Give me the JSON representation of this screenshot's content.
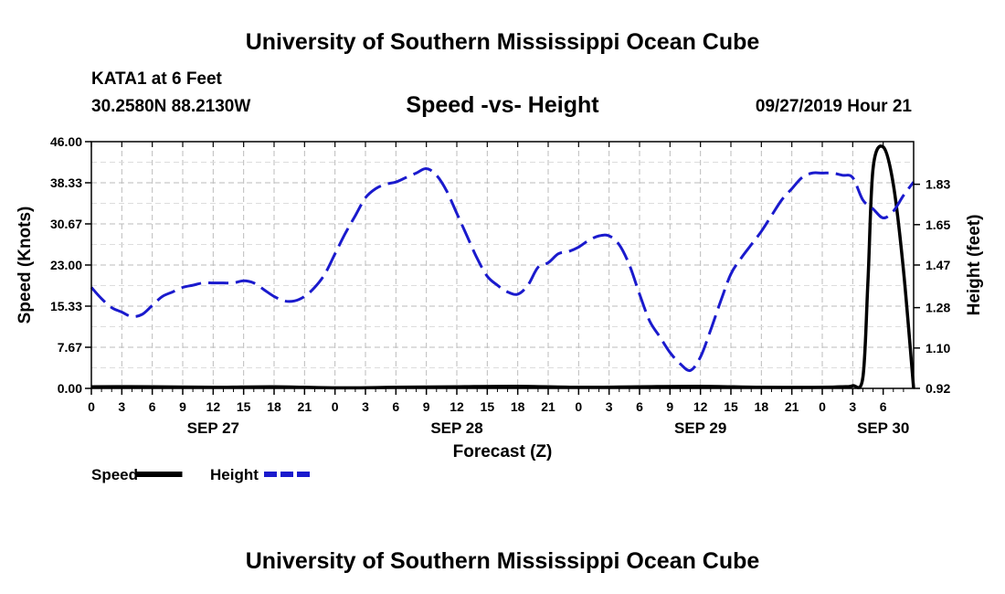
{
  "page": {
    "title_top": "University of Southern Mississippi Ocean Cube",
    "title_bottom": "University of Southern Mississippi Ocean Cube",
    "station": "KATA1 at 6 Feet",
    "coords": "30.2580N 88.2130W",
    "datetime": "09/27/2019 Hour 21"
  },
  "chart_data": {
    "type": "line",
    "title": "Speed -vs- Height",
    "xlabel": "Forecast (Z)",
    "ylabel_left": "Speed (Knots)",
    "ylabel_right": "Height (feet)",
    "x_hours_range": [
      0,
      81
    ],
    "x_tick_labels": [
      "0",
      "3",
      "6",
      "9",
      "12",
      "15",
      "18",
      "21",
      "0",
      "3",
      "6",
      "9",
      "12",
      "15",
      "18",
      "21",
      "0",
      "3",
      "6",
      "9",
      "12",
      "15",
      "18",
      "21",
      "0",
      "3",
      "6"
    ],
    "date_labels": [
      {
        "label": "SEP 27",
        "hour": 12
      },
      {
        "label": "SEP 28",
        "hour": 36
      },
      {
        "label": "SEP 29",
        "hour": 60
      },
      {
        "label": "SEP 30",
        "hour": 78
      }
    ],
    "y_left": {
      "range": [
        0,
        46
      ],
      "ticks": [
        "0.00",
        "7.67",
        "15.33",
        "23.00",
        "30.67",
        "38.33",
        "46.00"
      ]
    },
    "y_right": {
      "range": [
        0.92,
        2.02
      ],
      "ticks": [
        "0.92",
        "1.10",
        "1.28",
        "1.47",
        "1.65",
        "1.83"
      ]
    },
    "grid": true,
    "legend_placement": "bottom-left",
    "series": [
      {
        "name": "Speed",
        "axis": "left",
        "color": "#000000",
        "style": "solid",
        "x": [
          0,
          6,
          12,
          18,
          24,
          30,
          36,
          42,
          48,
          54,
          60,
          66,
          72,
          74,
          75,
          76,
          76.5,
          77,
          78,
          79,
          80,
          81
        ],
        "y": [
          0.3,
          0.3,
          0.2,
          0.3,
          0.1,
          0.2,
          0.3,
          0.4,
          0.2,
          0.3,
          0.4,
          0.2,
          0.2,
          0.3,
          0.5,
          2.0,
          20.0,
          41.0,
          45.0,
          38.0,
          22.0,
          0.0
        ]
      },
      {
        "name": "Height",
        "axis": "right",
        "color": "#1a1acd",
        "style": "dashed",
        "x": [
          0,
          1,
          2,
          3,
          4,
          5,
          6,
          7,
          8,
          9,
          10,
          11,
          12,
          13,
          14,
          15,
          16,
          17,
          18,
          19,
          20,
          21,
          22,
          23,
          24,
          25,
          26,
          27,
          28,
          29,
          30,
          31,
          32,
          33,
          34,
          35,
          36,
          37,
          38,
          39,
          40,
          41,
          42,
          43,
          44,
          45,
          46,
          47,
          48,
          49,
          50,
          51,
          52,
          53,
          54,
          55,
          56,
          57,
          58,
          59,
          60,
          61,
          62,
          63,
          64,
          65,
          66,
          67,
          68,
          69,
          70,
          71,
          72,
          73,
          74,
          75,
          76,
          77,
          78,
          79,
          80,
          81
        ],
        "y": [
          1.37,
          1.32,
          1.28,
          1.26,
          1.24,
          1.25,
          1.29,
          1.33,
          1.35,
          1.37,
          1.38,
          1.39,
          1.39,
          1.39,
          1.39,
          1.4,
          1.39,
          1.36,
          1.33,
          1.31,
          1.31,
          1.33,
          1.37,
          1.43,
          1.52,
          1.61,
          1.69,
          1.77,
          1.81,
          1.83,
          1.84,
          1.86,
          1.88,
          1.9,
          1.87,
          1.8,
          1.7,
          1.6,
          1.5,
          1.42,
          1.38,
          1.35,
          1.34,
          1.38,
          1.46,
          1.48,
          1.52,
          1.53,
          1.55,
          1.58,
          1.6,
          1.6,
          1.56,
          1.47,
          1.34,
          1.22,
          1.15,
          1.08,
          1.03,
          1.0,
          1.06,
          1.18,
          1.31,
          1.43,
          1.5,
          1.56,
          1.62,
          1.69,
          1.76,
          1.81,
          1.86,
          1.88,
          1.88,
          1.88,
          1.87,
          1.86,
          1.76,
          1.72,
          1.68,
          1.71,
          1.78,
          1.84
        ]
      }
    ]
  }
}
